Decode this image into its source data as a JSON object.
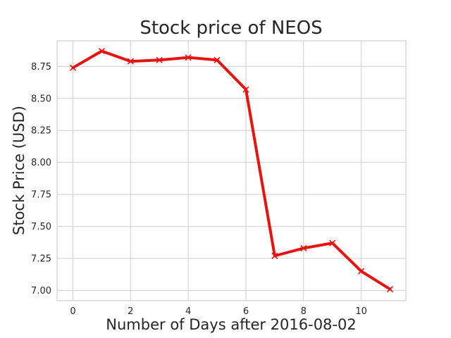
{
  "chart_data": {
    "type": "line",
    "title": "Stock price of NEOS",
    "xlabel": "Number of Days after 2016-08-02",
    "ylabel": "Stock Price (USD)",
    "x": [
      0,
      1,
      2,
      3,
      4,
      5,
      6,
      7,
      8,
      9,
      10,
      11
    ],
    "series": [
      {
        "values": [
          8.74,
          8.87,
          8.79,
          8.8,
          8.82,
          8.8,
          8.57,
          7.27,
          7.33,
          7.37,
          7.15,
          7.01
        ],
        "color": "#e8130f",
        "marker": "x"
      }
    ],
    "xlim": [
      -0.55,
      11.55
    ],
    "ylim": [
      6.92,
      8.95
    ],
    "xticks": [
      "0",
      "2",
      "4",
      "6",
      "8",
      "10"
    ],
    "yticks": [
      "7.00",
      "7.25",
      "7.50",
      "7.75",
      "8.00",
      "8.25",
      "8.50",
      "8.75"
    ],
    "grid": true,
    "style": "whitegrid"
  }
}
